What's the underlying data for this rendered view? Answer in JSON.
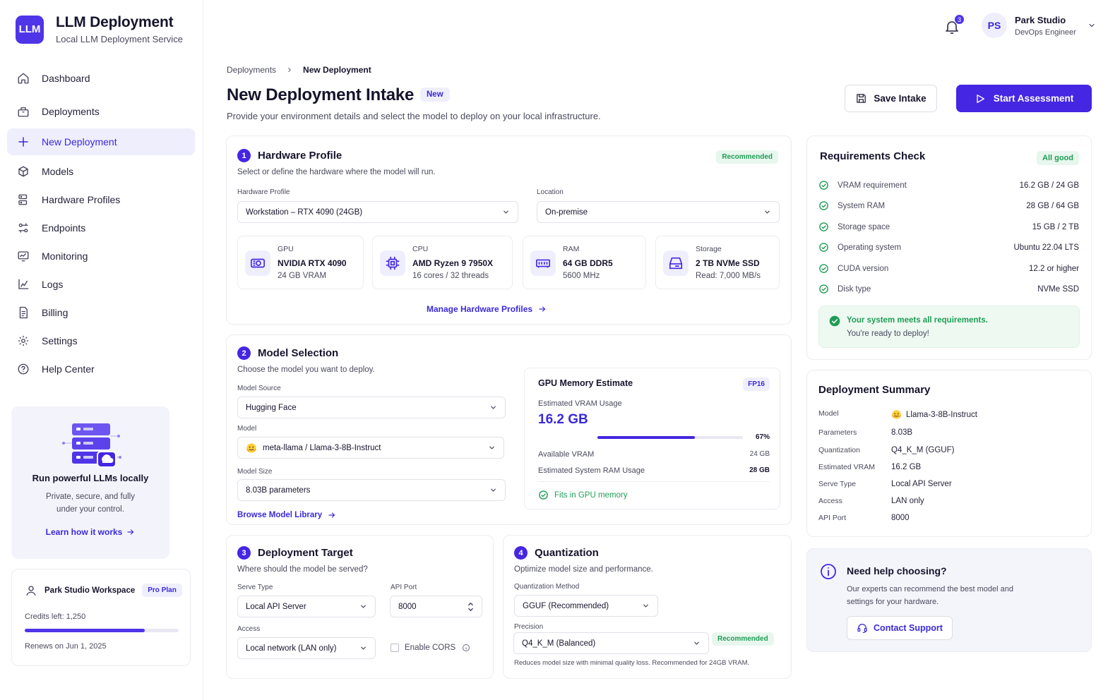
{
  "brand": {
    "logo_text": "LLM",
    "title": "LLM Deployment",
    "subtitle": "Local LLM Deployment Service"
  },
  "header": {
    "notifications_count": "3",
    "user": {
      "initials": "PS",
      "name": "Park Studio",
      "role": "DevOps Engineer"
    }
  },
  "sidebar": {
    "items": [
      {
        "label": "Dashboard",
        "icon": "home-icon"
      },
      {
        "label": "Deployments",
        "icon": "box-icon"
      },
      {
        "label": "New Deployment",
        "icon": "plus-icon",
        "active": true
      },
      {
        "label": "Models",
        "icon": "cube-icon"
      },
      {
        "label": "Hardware Profiles",
        "icon": "server-icon"
      },
      {
        "label": "Endpoints",
        "icon": "endpoints-icon"
      },
      {
        "label": "Monitoring",
        "icon": "monitor-icon"
      },
      {
        "label": "Logs",
        "icon": "logs-icon"
      },
      {
        "label": "Billing",
        "icon": "billing-icon"
      },
      {
        "label": "Settings",
        "icon": "gear-icon"
      },
      {
        "label": "Help Center",
        "icon": "help-icon"
      }
    ],
    "promo": {
      "title": "Run powerful LLMs locally",
      "desc": "Private, secure, and fully under your control.",
      "link": "Learn how it works"
    },
    "workspace": {
      "name": "Park Studio Workspace",
      "plan": "Pro Plan",
      "credits": "Credits left: 1,250",
      "credits_fraction": 0.78,
      "renews": "Renews on Jun 1, 2025"
    }
  },
  "breadcrumb": {
    "parent": "Deployments",
    "current": "New Deployment"
  },
  "page": {
    "title": "New Deployment Intake",
    "badge": "New",
    "subtitle": "Provide your environment details and select the model to deploy on your local infrastructure.",
    "save_label": "Save Intake",
    "start_label": "Start Assessment"
  },
  "hardware": {
    "num": "1",
    "title": "Hardware Profile",
    "badge": "Recommended",
    "desc": "Select or define the hardware where the model will run.",
    "profile_label": "Hardware Profile",
    "profile_value": "Workstation – RTX 4090 (24GB)",
    "location_label": "Location",
    "location_value": "On-premise",
    "specs": [
      {
        "label": "GPU",
        "main": "NVIDIA RTX 4090",
        "sub": "24 GB VRAM",
        "icon": "gpu-icon"
      },
      {
        "label": "CPU",
        "main": "AMD Ryzen 9 7950X",
        "sub": "16 cores / 32 threads",
        "icon": "cpu-icon"
      },
      {
        "label": "RAM",
        "main": "64 GB DDR5",
        "sub": "5600 MHz",
        "icon": "ram-icon"
      },
      {
        "label": "Storage",
        "main": "2 TB NVMe SSD",
        "sub": "Read: 7,000 MB/s",
        "icon": "storage-icon"
      }
    ],
    "manage_link": "Manage Hardware Profiles"
  },
  "model": {
    "num": "2",
    "title": "Model Selection",
    "desc": "Choose the model you want to deploy.",
    "source_label": "Model Source",
    "source_value": "Hugging Face",
    "model_label": "Model",
    "model_value": "meta-llama / Llama-3-8B-Instruct",
    "size_label": "Model Size",
    "size_value": "8.03B parameters",
    "browse_link": "Browse Model Library",
    "memory": {
      "title": "GPU Memory Estimate",
      "badge": "FP16",
      "usage_label": "Estimated VRAM Usage",
      "usage_value": "16.2 GB",
      "usage_percent": "67%",
      "usage_fraction": 0.67,
      "available_label": "Available VRAM",
      "available_value": "24 GB",
      "ram_label": "Estimated System RAM Usage",
      "ram_value": "28 GB",
      "fits": "Fits in GPU memory"
    }
  },
  "target": {
    "num": "3",
    "title": "Deployment Target",
    "desc": "Where should the model be served?",
    "serve_label": "Serve Type",
    "serve_value": "Local API Server",
    "port_label": "API Port",
    "port_value": "8000",
    "access_label": "Access",
    "access_value": "Local network (LAN only)",
    "cors_label": "Enable CORS"
  },
  "quant": {
    "num": "4",
    "title": "Quantization",
    "desc": "Optimize model size and performance.",
    "method_label": "Quantization Method",
    "method_value": "GGUF (Recommended)",
    "precision_label": "Precision",
    "precision_value": "Q4_K_M (Balanced)",
    "precision_badge": "Recommended",
    "note": "Reduces model size with minimal quality loss. Recommended for 24GB VRAM."
  },
  "requirements": {
    "title": "Requirements Check",
    "badge": "All good",
    "rows": [
      {
        "label": "VRAM requirement",
        "value": "16.2 GB / 24 GB"
      },
      {
        "label": "System RAM",
        "value": "28 GB / 64 GB"
      },
      {
        "label": "Storage space",
        "value": "15 GB / 2 TB"
      },
      {
        "label": "Operating system",
        "value": "Ubuntu 22.04 LTS"
      },
      {
        "label": "CUDA version",
        "value": "12.2 or higher"
      },
      {
        "label": "Disk type",
        "value": "NVMe SSD"
      }
    ],
    "success_line1": "Your system meets all requirements.",
    "success_line2": "You're ready to deploy!"
  },
  "summary": {
    "title": "Deployment Summary",
    "rows": [
      {
        "key": "Model",
        "value": "Llama-3-8B-Instruct"
      },
      {
        "key": "Parameters",
        "value": "8.03B"
      },
      {
        "key": "Quantization",
        "value": "Q4_K_M (GGUF)"
      },
      {
        "key": "Estimated VRAM",
        "value": "16.2 GB"
      },
      {
        "key": "Serve Type",
        "value": "Local API Server"
      },
      {
        "key": "Access",
        "value": "LAN only"
      },
      {
        "key": "API Port",
        "value": "8000"
      }
    ]
  },
  "help": {
    "title": "Need help choosing?",
    "desc": "Our experts can recommend the best model and settings for your hardware.",
    "button": "Contact Support"
  },
  "colors": {
    "accent": "#4426e3",
    "accent_soft": "#efeefd",
    "success": "#1f9d55",
    "success_soft": "#e8f7ee"
  }
}
